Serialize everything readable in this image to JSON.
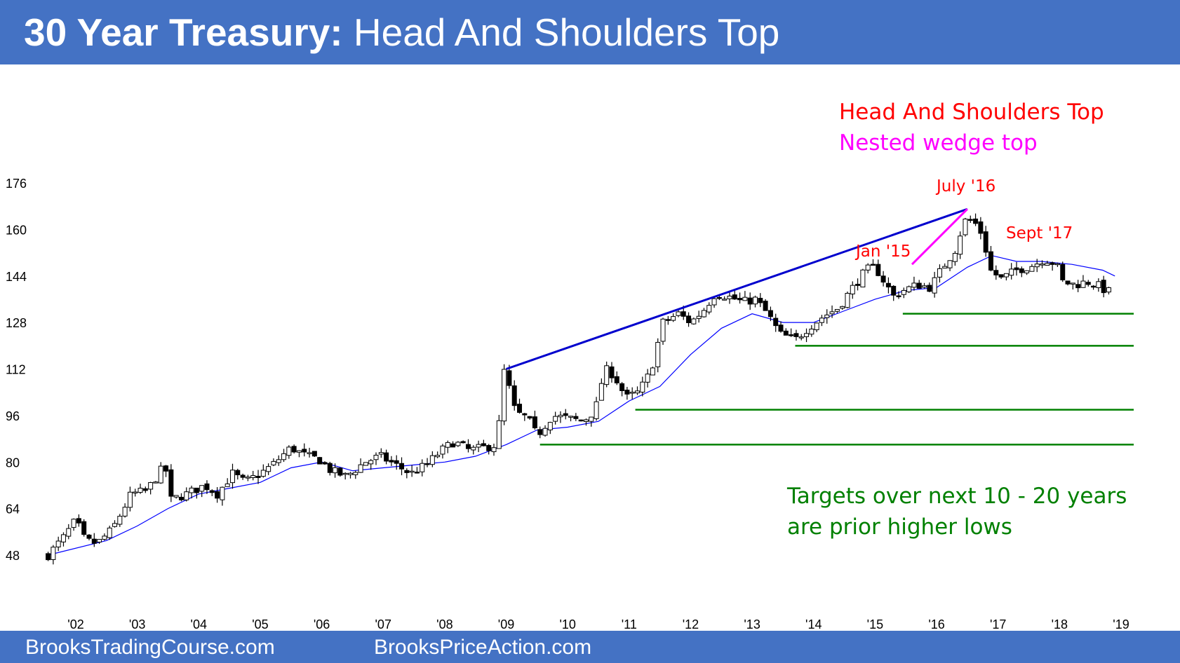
{
  "header": {
    "title_bold": "30 Year Treasury:",
    "title_rest": " Head And Shoulders Top",
    "background": "#4472c4"
  },
  "footer": {
    "left": "BrooksTradingCourse.com",
    "right": "BrooksPriceAction.com"
  },
  "chart_data": {
    "type": "candlestick",
    "frequency": "monthly",
    "y_ticks": [
      "48",
      "64",
      "80",
      "96",
      "112",
      "128",
      "144",
      "160",
      "176"
    ],
    "y_tick_values": [
      48,
      64,
      80,
      96,
      112,
      128,
      144,
      160,
      176
    ],
    "ylim": [
      36,
      190
    ],
    "x_ticks": [
      "'02",
      "'03",
      "'04",
      "'05",
      "'06",
      "'07",
      "'08",
      "'09",
      "'10",
      "'11",
      "'12",
      "'13",
      "'14",
      "'15",
      "'16",
      "'17",
      "'18",
      "'19"
    ],
    "x_tick_years": [
      2002,
      2003,
      2004,
      2005,
      2006,
      2007,
      2008,
      2009,
      2010,
      2011,
      2012,
      2013,
      2014,
      2015,
      2016,
      2017,
      2018,
      2019
    ],
    "xlim": [
      2001.5,
      2019.1
    ],
    "price_anchors": [
      [
        2001.55,
        48
      ],
      [
        2001.8,
        54
      ],
      [
        2002.0,
        60
      ],
      [
        2002.15,
        53
      ],
      [
        2002.35,
        52
      ],
      [
        2002.6,
        57
      ],
      [
        2002.9,
        69
      ],
      [
        2003.15,
        70
      ],
      [
        2003.45,
        79
      ],
      [
        2003.55,
        67
      ],
      [
        2003.8,
        69
      ],
      [
        2004.1,
        72
      ],
      [
        2004.3,
        69
      ],
      [
        2004.55,
        76
      ],
      [
        2004.75,
        73
      ],
      [
        2005.0,
        76
      ],
      [
        2005.2,
        79
      ],
      [
        2005.5,
        85
      ],
      [
        2005.75,
        82
      ],
      [
        2005.95,
        81
      ],
      [
        2006.15,
        77
      ],
      [
        2006.4,
        75
      ],
      [
        2006.7,
        80
      ],
      [
        2006.95,
        82
      ],
      [
        2007.2,
        79
      ],
      [
        2007.45,
        76
      ],
      [
        2007.7,
        79
      ],
      [
        2007.95,
        84
      ],
      [
        2008.15,
        87
      ],
      [
        2008.4,
        84
      ],
      [
        2008.65,
        85
      ],
      [
        2008.85,
        86
      ],
      [
        2008.97,
        112
      ],
      [
        2009.15,
        97
      ],
      [
        2009.35,
        95
      ],
      [
        2009.5,
        89
      ],
      [
        2009.75,
        96
      ],
      [
        2010.0,
        95
      ],
      [
        2010.25,
        94
      ],
      [
        2010.45,
        98
      ],
      [
        2010.6,
        112
      ],
      [
        2010.75,
        110
      ],
      [
        2010.95,
        102
      ],
      [
        2011.15,
        104
      ],
      [
        2011.35,
        111
      ],
      [
        2011.55,
        128
      ],
      [
        2011.8,
        131
      ],
      [
        2012.0,
        128
      ],
      [
        2012.2,
        132
      ],
      [
        2012.4,
        138
      ],
      [
        2012.6,
        137
      ],
      [
        2012.85,
        135
      ],
      [
        2013.05,
        136
      ],
      [
        2013.25,
        131
      ],
      [
        2013.45,
        124
      ],
      [
        2013.7,
        122
      ],
      [
        2013.9,
        126
      ],
      [
        2014.15,
        130
      ],
      [
        2014.4,
        133
      ],
      [
        2014.6,
        139
      ],
      [
        2014.85,
        146
      ],
      [
        2015.0,
        147
      ],
      [
        2015.15,
        142
      ],
      [
        2015.3,
        137
      ],
      [
        2015.45,
        139
      ],
      [
        2015.7,
        141
      ],
      [
        2015.9,
        140
      ],
      [
        2016.1,
        147
      ],
      [
        2016.3,
        153
      ],
      [
        2016.45,
        163
      ],
      [
        2016.6,
        163
      ],
      [
        2016.75,
        158
      ],
      [
        2016.87,
        146
      ],
      [
        2017.05,
        143
      ],
      [
        2017.3,
        146
      ],
      [
        2017.6,
        148
      ],
      [
        2017.75,
        150
      ],
      [
        2017.95,
        148
      ],
      [
        2018.05,
        142
      ],
      [
        2018.25,
        141
      ],
      [
        2018.45,
        142
      ],
      [
        2018.6,
        141
      ],
      [
        2018.75,
        139
      ],
      [
        2018.87,
        138
      ]
    ],
    "moving_average": [
      [
        2001.55,
        48
      ],
      [
        2002.5,
        53
      ],
      [
        2003.0,
        58
      ],
      [
        2003.5,
        64
      ],
      [
        2004.0,
        69
      ],
      [
        2004.5,
        71
      ],
      [
        2005.0,
        73
      ],
      [
        2005.5,
        78
      ],
      [
        2006.0,
        80
      ],
      [
        2006.5,
        77
      ],
      [
        2007.0,
        78
      ],
      [
        2007.5,
        79
      ],
      [
        2008.0,
        80
      ],
      [
        2008.5,
        82
      ],
      [
        2009.0,
        86
      ],
      [
        2009.5,
        91
      ],
      [
        2010.0,
        92
      ],
      [
        2010.5,
        94
      ],
      [
        2011.0,
        101
      ],
      [
        2011.5,
        106
      ],
      [
        2012.0,
        117
      ],
      [
        2012.5,
        126
      ],
      [
        2013.0,
        131
      ],
      [
        2013.5,
        128
      ],
      [
        2014.0,
        128
      ],
      [
        2014.5,
        132
      ],
      [
        2015.0,
        136
      ],
      [
        2015.5,
        139
      ],
      [
        2016.0,
        140
      ],
      [
        2016.5,
        147
      ],
      [
        2016.9,
        151
      ],
      [
        2017.3,
        149
      ],
      [
        2017.7,
        149
      ],
      [
        2018.2,
        148
      ],
      [
        2018.7,
        146
      ],
      [
        2018.9,
        144
      ]
    ],
    "wedge_line": {
      "x": [
        2009.0,
        2016.5
      ],
      "y": [
        112,
        167
      ],
      "color": "#0000cd"
    },
    "nested_wedge_line": {
      "x": [
        2015.6,
        2016.5
      ],
      "y": [
        148,
        167
      ],
      "color": "#ff00ff"
    },
    "target_lines": [
      {
        "x_start": 2015.45,
        "y": 131
      },
      {
        "x_start": 2013.7,
        "y": 120
      },
      {
        "x_start": 2011.1,
        "y": 98
      },
      {
        "x_start": 2009.55,
        "y": 86
      }
    ],
    "target_color": "#008000",
    "annotations": [
      {
        "text": "Head And Shoulders Top",
        "color": "#ff0000"
      },
      {
        "text": "Nested wedge top",
        "color": "#ff00ff"
      },
      {
        "text": "July '16",
        "color": "#ff0000"
      },
      {
        "text": "Jan '15",
        "color": "#ff0000"
      },
      {
        "text": "Sept '17",
        "color": "#ff0000"
      },
      {
        "text": "Targets over next 10 - 20 years",
        "color": "#008000"
      },
      {
        "text": "are prior higher lows",
        "color": "#008000"
      }
    ],
    "candle_color_up": "#ffffff",
    "candle_color_down": "#000000",
    "ma_color": "#0000ff",
    "grid": false
  }
}
